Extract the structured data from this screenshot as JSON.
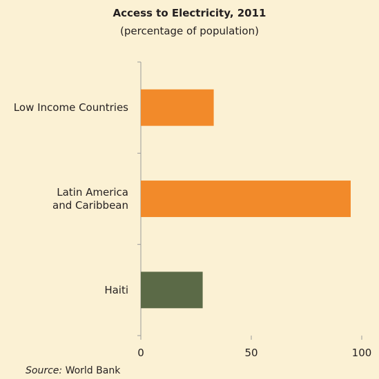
{
  "chart_data": {
    "type": "bar",
    "orientation": "horizontal",
    "title": "Access to Electricity, 2011",
    "subtitle": "(percentage of population)",
    "categories": [
      "Low Income Countries",
      "Latin America and Caribbean",
      "Haiti"
    ],
    "category_lines": [
      [
        "Low Income Countries"
      ],
      [
        "Latin America",
        "and Caribbean"
      ],
      [
        "Haiti"
      ]
    ],
    "values": [
      33,
      95,
      28
    ],
    "bar_colors": [
      "#f28a2a",
      "#f28a2a",
      "#5b6a47"
    ],
    "xlim": [
      0,
      100
    ],
    "xticks": [
      0,
      50,
      100
    ],
    "grid": false,
    "legend": "none"
  },
  "source": {
    "label": "Source:",
    "text": "World Bank"
  }
}
